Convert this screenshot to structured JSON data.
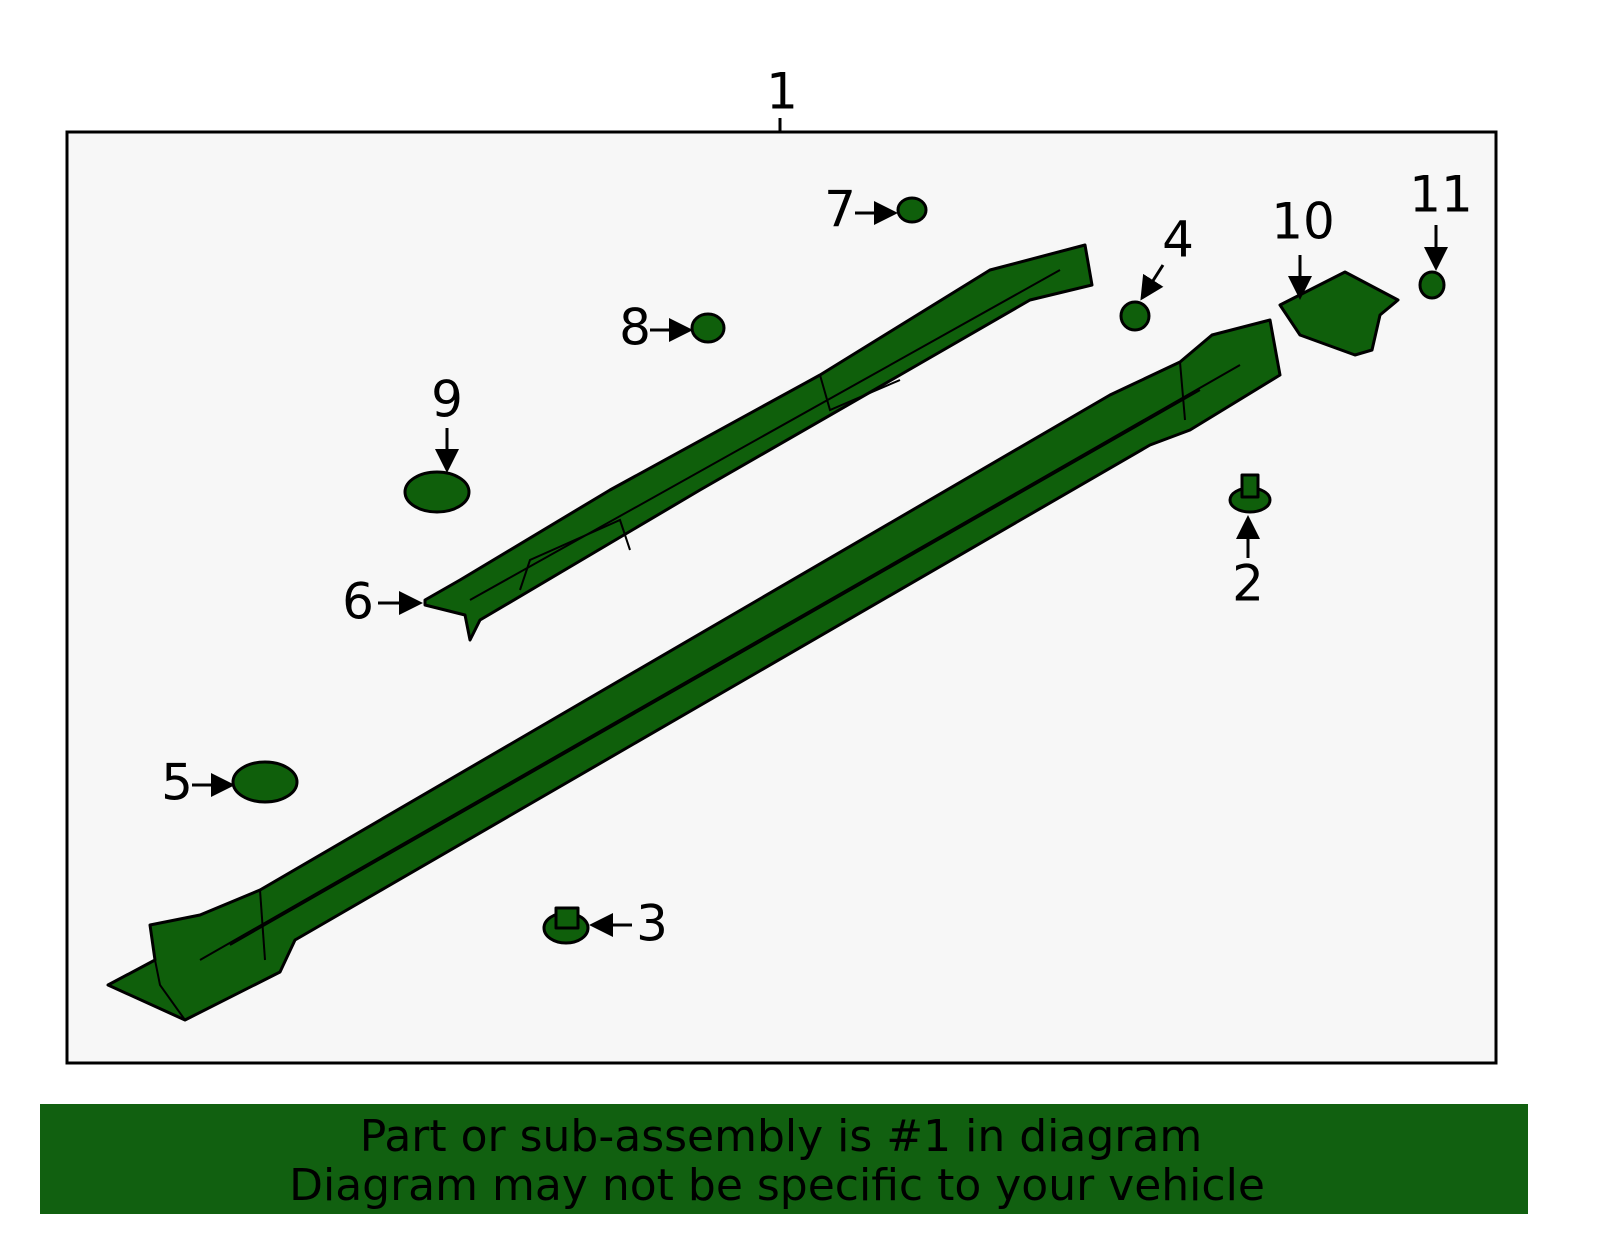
{
  "callouts": [
    "1",
    "2",
    "3",
    "4",
    "5",
    "6",
    "7",
    "8",
    "9",
    "10",
    "11"
  ],
  "footer": {
    "lines": [
      "Part or sub-assembly is #1 in diagram",
      "Diagram may not be specific to your vehicle"
    ]
  }
}
